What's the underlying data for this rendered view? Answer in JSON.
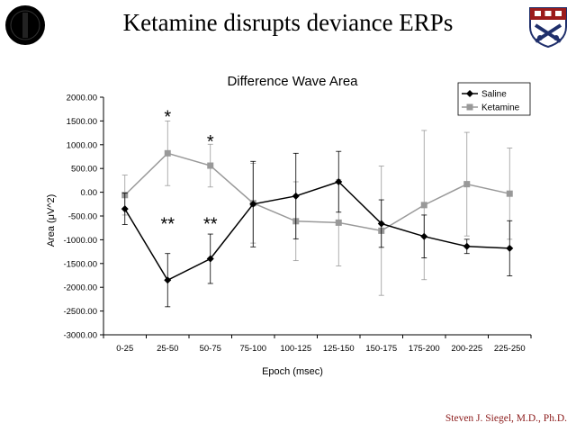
{
  "slide": {
    "title": "Ketamine disrupts deviance ERPs",
    "credit": "Steven J. Siegel, M.D., Ph.D."
  },
  "logos": {
    "left": "dark-circular-seal-icon",
    "right": "university-shield-crest-icon",
    "left_color": "#000000",
    "right_color": "#1f2f6b"
  },
  "chart_data": {
    "type": "line",
    "title": "Difference Wave Area",
    "xlabel": "Epoch (msec)",
    "ylabel": "Area (μV^2)",
    "categories": [
      "0-25",
      "25-50",
      "50-75",
      "75-100",
      "100-125",
      "125-150",
      "150-175",
      "175-200",
      "200-225",
      "225-250"
    ],
    "ylim": [
      -3000,
      2000
    ],
    "yticks": [
      "2000.00",
      "1500.00",
      "1000.00",
      "500.00",
      "0.00",
      "-500.00",
      "-1000.00",
      "-1500.00",
      "-2000.00",
      "-2500.00",
      "-3000.00"
    ],
    "ytick_values": [
      2000,
      1500,
      1000,
      500,
      0,
      -500,
      -1000,
      -1500,
      -2000,
      -2500,
      -3000
    ],
    "grid": false,
    "legend_position": "top-right",
    "series": [
      {
        "name": "Saline",
        "color": "#000000",
        "marker": "diamond",
        "values": [
          -350,
          -1850,
          -1400,
          -250,
          -80,
          220,
          -660,
          -930,
          -1140,
          -1180
        ],
        "error": [
          330,
          560,
          520,
          900,
          900,
          640,
          500,
          450,
          150,
          580
        ]
      },
      {
        "name": "Ketamine",
        "color": "#999999",
        "marker": "square",
        "values": [
          -60,
          820,
          560,
          -230,
          -610,
          -640,
          -810,
          -270,
          170,
          -30
        ],
        "error": [
          420,
          680,
          450,
          840,
          830,
          910,
          1360,
          1570,
          1090,
          960
        ]
      }
    ],
    "annotations": [
      {
        "text": "*",
        "category": "25-50",
        "y": 1650
      },
      {
        "text": "*",
        "category": "50-75",
        "y": 1130
      },
      {
        "text": "**",
        "category": "25-50",
        "y": -600
      },
      {
        "text": "**",
        "category": "50-75",
        "y": -600
      }
    ]
  }
}
